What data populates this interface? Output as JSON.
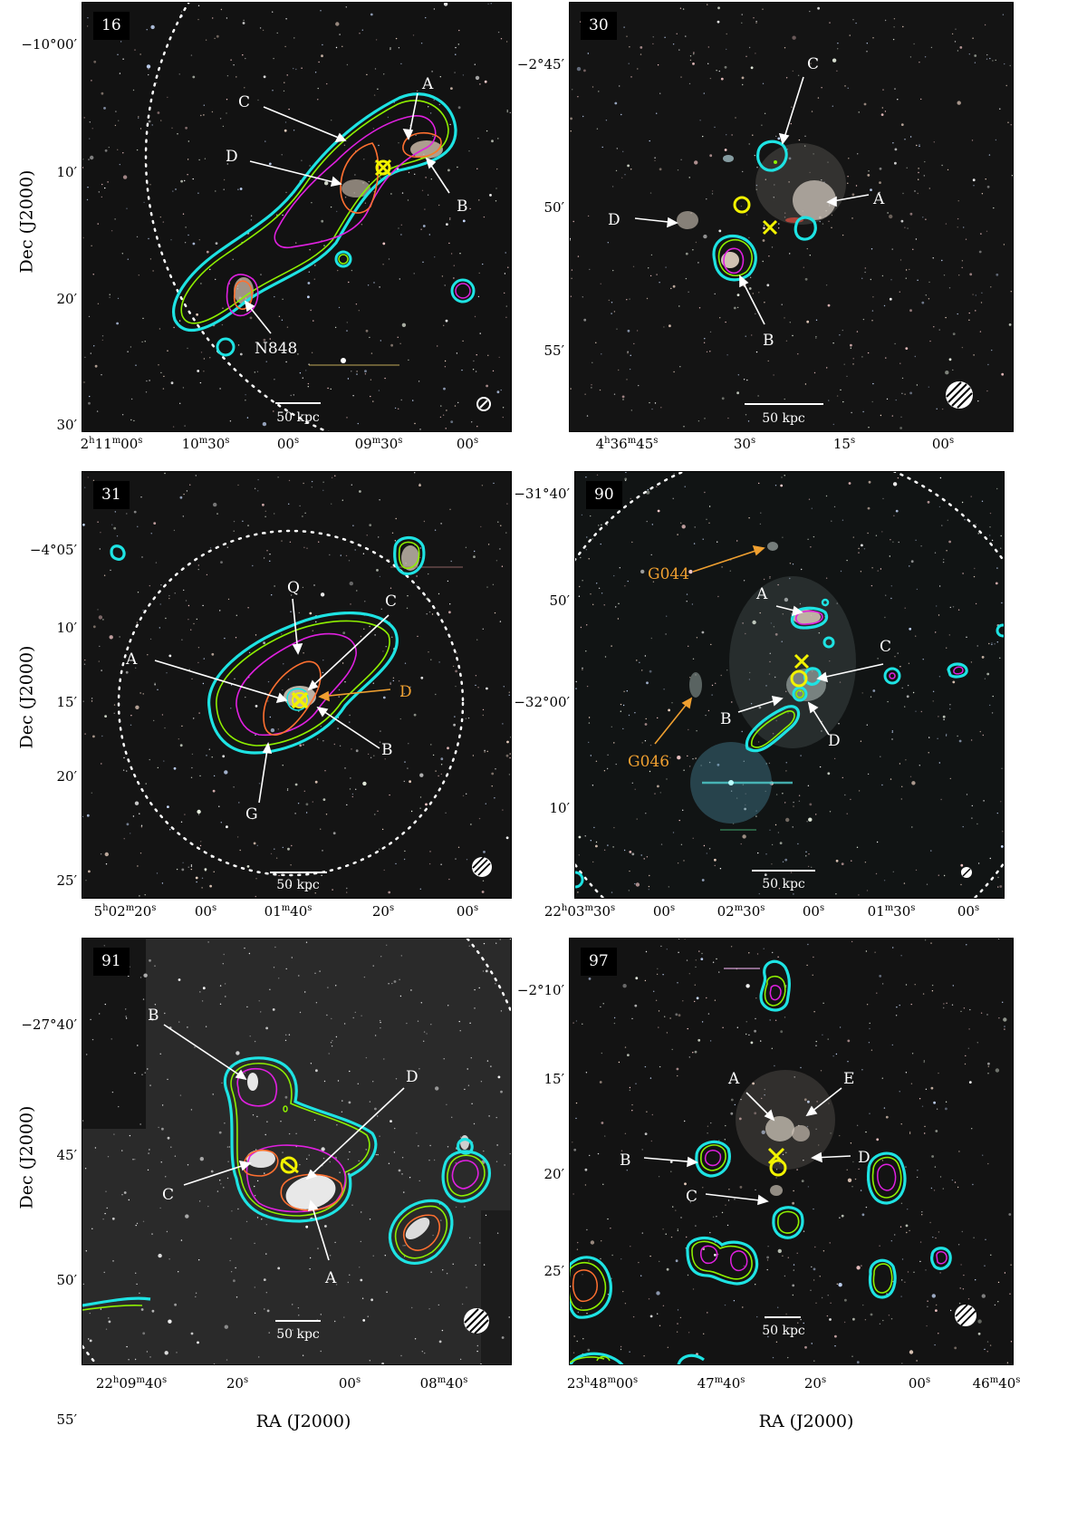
{
  "axis_titles": {
    "ra": "RA (J2000)",
    "dec": "Dec (J2000)"
  },
  "scale_label": "50 kpc",
  "panels": [
    {
      "title": "16",
      "labels": {
        "A": "A",
        "B": "B",
        "C": "C",
        "D": "D",
        "N848": "N848"
      },
      "dec_ticks": [
        "−10°00′",
        "10′",
        "20′",
        "30′"
      ],
      "ra_ticks": [
        "2h11m00s",
        "10m30s",
        "00s",
        "09m30s",
        "00s"
      ]
    },
    {
      "title": "30",
      "labels": {
        "A": "A",
        "B": "B",
        "C": "C",
        "D": "D"
      },
      "dec_ticks": [
        "−2°45′",
        "50′",
        "55′"
      ],
      "ra_ticks": [
        "4h36m45s",
        "30s",
        "15s",
        "00s"
      ]
    },
    {
      "title": "31",
      "labels": {
        "A": "A",
        "B": "B",
        "C": "C",
        "D": "D",
        "G": "G",
        "Q": "Q"
      },
      "dec_ticks": [
        "−4°05′",
        "10′",
        "15′",
        "20′",
        "25′"
      ],
      "ra_ticks": [
        "5h02m20s",
        "00s",
        "01m40s",
        "20s",
        "00s"
      ]
    },
    {
      "title": "90",
      "labels": {
        "A": "A",
        "B": "B",
        "C": "C",
        "D": "D",
        "G044": "G044",
        "G046": "G046"
      },
      "dec_ticks": [
        "−31°40′",
        "50′",
        "−32°00′",
        "10′"
      ],
      "ra_ticks": [
        "22h03m30s",
        "00s",
        "02m30s",
        "00s",
        "01m30s",
        "00s"
      ]
    },
    {
      "title": "91",
      "labels": {
        "A": "A",
        "B": "B",
        "C": "C",
        "D": "D"
      },
      "dec_ticks": [
        "−27°40′",
        "45′",
        "50′",
        "55′"
      ],
      "ra_ticks": [
        "22h09m40s",
        "20s",
        "00s",
        "08m40s"
      ]
    },
    {
      "title": "97",
      "labels": {
        "A": "A",
        "B": "B",
        "C": "C",
        "D": "D",
        "E": "E"
      },
      "dec_ticks": [
        "−2°10′",
        "15′",
        "20′",
        "25′"
      ],
      "ra_ticks": [
        "23h48m00s",
        "47m40s",
        "20s",
        "00s",
        "46m40s"
      ]
    }
  ]
}
